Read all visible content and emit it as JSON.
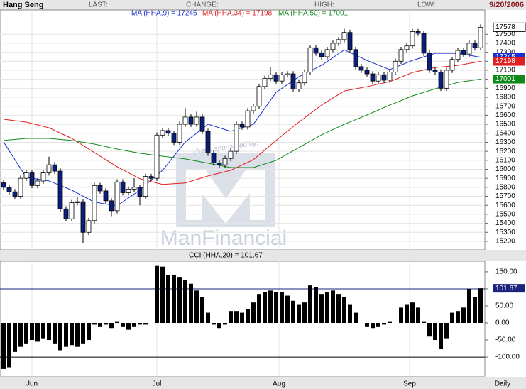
{
  "header": {
    "title": "Hang Seng",
    "fields": [
      "LAST:",
      "CHANGE:",
      "HIGH:",
      "LOW:"
    ],
    "date": "9/20/2006"
  },
  "chart_data": [
    {
      "type": "candlestick",
      "ohlc": [
        [
          15850,
          15880,
          15770,
          15800
        ],
        [
          15800,
          15830,
          15720,
          15750
        ],
        [
          15750,
          15780,
          15670,
          15700
        ],
        [
          15700,
          15930,
          15670,
          15900
        ],
        [
          15900,
          15990,
          15870,
          15960
        ],
        [
          15960,
          15990,
          15790,
          15820
        ],
        [
          15820,
          15900,
          15790,
          15870
        ],
        [
          15870,
          15990,
          15840,
          15960
        ],
        [
          15960,
          16140,
          15930,
          16050
        ],
        [
          16050,
          16080,
          15950,
          15980
        ],
        [
          15980,
          16010,
          15530,
          15560
        ],
        [
          15560,
          15590,
          15420,
          15450
        ],
        [
          15450,
          15660,
          15420,
          15630
        ],
        [
          15630,
          15690,
          15600,
          15640
        ],
        [
          15640,
          15670,
          15180,
          15300
        ],
        [
          15300,
          15460,
          15270,
          15430
        ],
        [
          15430,
          15850,
          15400,
          15820
        ],
        [
          15820,
          15850,
          15730,
          15760
        ],
        [
          15760,
          15790,
          15620,
          15650
        ],
        [
          15650,
          15680,
          15480,
          15540
        ],
        [
          15540,
          15890,
          15510,
          15860
        ],
        [
          15860,
          15890,
          15710,
          15740
        ],
        [
          15740,
          15810,
          15710,
          15780
        ],
        [
          15780,
          15900,
          15750,
          15800
        ],
        [
          15800,
          15830,
          15600,
          15700
        ],
        [
          15700,
          15950,
          15670,
          15920
        ],
        [
          15920,
          15950,
          15870,
          15900
        ],
        [
          15900,
          16410,
          15870,
          16380
        ],
        [
          16380,
          16460,
          16350,
          16430
        ],
        [
          16430,
          16460,
          16370,
          16400
        ],
        [
          16400,
          16430,
          16270,
          16300
        ],
        [
          16300,
          16530,
          16270,
          16500
        ],
        [
          16500,
          16680,
          16470,
          16580
        ],
        [
          16580,
          16610,
          16470,
          16500
        ],
        [
          16500,
          16640,
          16470,
          16580
        ],
        [
          16580,
          16610,
          16390,
          16420
        ],
        [
          16420,
          16450,
          16150,
          16180
        ],
        [
          16180,
          16210,
          16040,
          16070
        ],
        [
          16070,
          16100,
          16020,
          16050
        ],
        [
          16050,
          16150,
          16020,
          16120
        ],
        [
          16120,
          16230,
          16090,
          16200
        ],
        [
          16200,
          16530,
          16170,
          16500
        ],
        [
          16500,
          16530,
          16440,
          16470
        ],
        [
          16470,
          16680,
          16440,
          16650
        ],
        [
          16650,
          16730,
          16620,
          16700
        ],
        [
          16700,
          16950,
          16670,
          16920
        ],
        [
          16920,
          17040,
          16890,
          17010
        ],
        [
          17010,
          17130,
          16980,
          17050
        ],
        [
          17050,
          17080,
          16950,
          16980
        ],
        [
          16980,
          17080,
          16950,
          17050
        ],
        [
          17050,
          17090,
          17020,
          17060
        ],
        [
          17060,
          17090,
          16860,
          16890
        ],
        [
          16890,
          16990,
          16860,
          16960
        ],
        [
          16960,
          17110,
          16930,
          17080
        ],
        [
          17080,
          17380,
          17050,
          17350
        ],
        [
          17350,
          17380,
          17260,
          17290
        ],
        [
          17290,
          17320,
          17220,
          17250
        ],
        [
          17250,
          17360,
          17220,
          17330
        ],
        [
          17330,
          17430,
          17300,
          17400
        ],
        [
          17400,
          17470,
          17370,
          17440
        ],
        [
          17440,
          17560,
          17410,
          17520
        ],
        [
          17520,
          17550,
          17300,
          17330
        ],
        [
          17330,
          17360,
          17110,
          17140
        ],
        [
          17140,
          17170,
          17070,
          17100
        ],
        [
          17100,
          17130,
          17030,
          17060
        ],
        [
          17060,
          17090,
          16950,
          16980
        ],
        [
          16980,
          17080,
          16950,
          17050
        ],
        [
          17050,
          17080,
          16960,
          16990
        ],
        [
          16990,
          17110,
          16960,
          17080
        ],
        [
          17080,
          17230,
          17050,
          17200
        ],
        [
          17200,
          17360,
          17170,
          17330
        ],
        [
          17330,
          17400,
          17300,
          17370
        ],
        [
          17370,
          17560,
          17340,
          17530
        ],
        [
          17530,
          17560,
          17480,
          17510
        ],
        [
          17510,
          17540,
          17260,
          17290
        ],
        [
          17290,
          17320,
          17070,
          17100
        ],
        [
          17100,
          17130,
          17050,
          17080
        ],
        [
          17080,
          17110,
          16870,
          16900
        ],
        [
          16900,
          17130,
          16870,
          17100
        ],
        [
          17100,
          17250,
          17070,
          17220
        ],
        [
          17220,
          17350,
          17190,
          17320
        ],
        [
          17320,
          17350,
          17250,
          17280
        ],
        [
          17280,
          17430,
          17250,
          17400
        ],
        [
          17400,
          17430,
          17320,
          17350
        ],
        [
          17350,
          17610,
          17320,
          17578
        ]
      ],
      "up_color": "#ffffff",
      "down_color": "#0b1f7a",
      "ylim": [
        15105,
        17770
      ],
      "yticks": [
        15200,
        15300,
        15400,
        15500,
        15600,
        15700,
        15800,
        15900,
        16000,
        16100,
        16200,
        16300,
        16400,
        16500,
        16600,
        16700,
        16800,
        16900,
        17000,
        17100,
        17200,
        17300,
        17400,
        17500
      ],
      "grid": true,
      "series": [
        {
          "name": "MA (HHA,9) = 17245",
          "color": "#1a2fd0",
          "x": [
            0,
            4,
            8,
            12,
            16,
            20,
            24,
            28,
            32,
            36,
            40,
            44,
            48,
            52,
            56,
            60,
            64,
            68,
            72,
            76,
            80,
            84
          ],
          "values": [
            16304,
            15910,
            15871,
            15769,
            15635,
            15595,
            15769,
            15989,
            16304,
            16500,
            16422,
            16500,
            16855,
            17028,
            17154,
            17327,
            17209,
            17107,
            17209,
            17288,
            17288,
            17245
          ]
        },
        {
          "name": "MA (HHA,34) = 17198",
          "color": "#e02020",
          "x": [
            0,
            4,
            8,
            12,
            16,
            20,
            24,
            28,
            32,
            36,
            40,
            44,
            48,
            52,
            56,
            60,
            64,
            68,
            72,
            76,
            80,
            84
          ],
          "values": [
            16556,
            16524,
            16461,
            16343,
            16186,
            16028,
            15895,
            15832,
            15848,
            15926,
            15989,
            16107,
            16320,
            16524,
            16713,
            16870,
            16918,
            16973,
            17075,
            17130,
            17154,
            17198
          ]
        },
        {
          "name": "MA (HHA,50) = 17001",
          "color": "#0f8a1a",
          "x": [
            0,
            4,
            8,
            12,
            16,
            20,
            24,
            28,
            32,
            36,
            40,
            44,
            48,
            52,
            56,
            60,
            64,
            68,
            72,
            76,
            80,
            84
          ],
          "values": [
            16320,
            16343,
            16343,
            16320,
            16280,
            16225,
            16178,
            16146,
            16115,
            16068,
            16020,
            16020,
            16099,
            16241,
            16383,
            16500,
            16603,
            16713,
            16815,
            16894,
            16965,
            17001
          ]
        }
      ],
      "xticks": [
        {
          "value": 5,
          "label": "Jun"
        },
        {
          "value": 27,
          "label": "Jul"
        },
        {
          "value": 48.5,
          "label": "Aug"
        },
        {
          "value": 71.5,
          "label": "Sep"
        }
      ],
      "period": "Daily",
      "watermark": [
        "charts sponsored by:",
        "ManFinancial"
      ]
    },
    {
      "type": "bar",
      "title": "CCI (HHA,20) = 101.67",
      "values": [
        -135,
        -130,
        -85,
        -70,
        -60,
        -50,
        -55,
        -45,
        -50,
        -60,
        -80,
        -70,
        -65,
        -70,
        -60,
        -50,
        -5,
        -10,
        -5,
        -15,
        5,
        -10,
        -20,
        -10,
        -5,
        -5,
        0,
        167,
        165,
        140,
        140,
        135,
        125,
        115,
        95,
        75,
        30,
        -5,
        -15,
        -5,
        35,
        35,
        30,
        40,
        60,
        85,
        90,
        95,
        90,
        90,
        80,
        65,
        55,
        60,
        110,
        105,
        85,
        90,
        95,
        85,
        75,
        55,
        30,
        0,
        -10,
        -15,
        -10,
        -5,
        5,
        0,
        45,
        55,
        60,
        45,
        5,
        -40,
        -50,
        -75,
        -45,
        30,
        35,
        45,
        100,
        75,
        101.67
      ],
      "color": "#000000",
      "ylim": [
        -156,
        181
      ],
      "yticks": [
        {
          "value": 150,
          "label": "150.00"
        },
        {
          "value": 100,
          "label": "100.00"
        },
        {
          "value": 50,
          "label": "50.00"
        },
        {
          "value": 0,
          "label": "0.00"
        },
        {
          "value": -50,
          "label": "-50.00"
        },
        {
          "value": -100,
          "label": "-100.00"
        }
      ],
      "ref_lines": [
        {
          "value": 100,
          "color": "#1a237e"
        },
        {
          "value": -100,
          "color": "#000000"
        }
      ]
    }
  ]
}
